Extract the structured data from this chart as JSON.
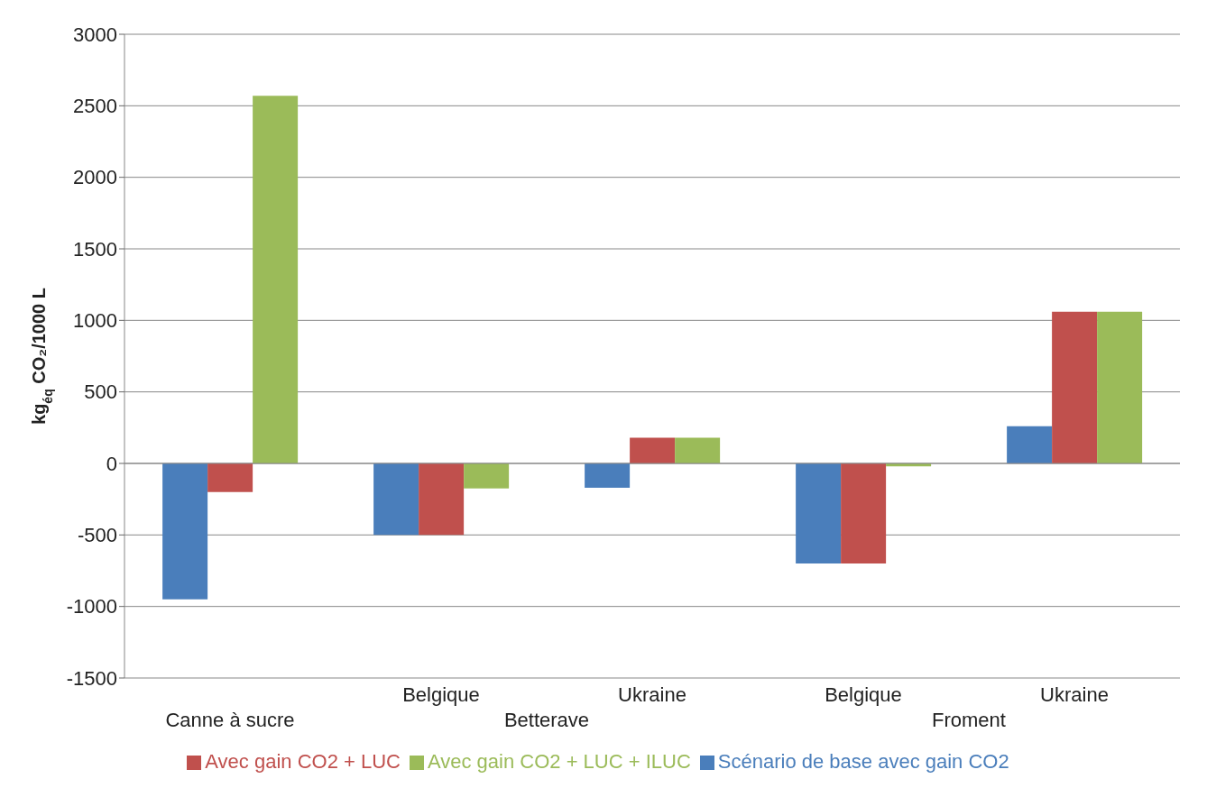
{
  "chart_data": {
    "type": "bar",
    "ylabel": "kg$_{éq}$ CO₂/1000 L",
    "categories": [
      "Canne à sucre",
      "Belgique",
      "Ukraine",
      "Belgique",
      "Ukraine"
    ],
    "annotations": [
      "Betterave",
      "Froment"
    ],
    "series": [
      {
        "name": "Scénario de base avec gain CO2",
        "color": "#4a7ebb",
        "values": [
          -950,
          -500,
          -170,
          -700,
          260
        ]
      },
      {
        "name": "Avec gain CO2 + LUC",
        "color": "#c0504d",
        "values": [
          -200,
          -500,
          180,
          -700,
          1060
        ]
      },
      {
        "name": "Avec gain CO2 + LUC + ILUC",
        "color": "#9bbb59",
        "values": [
          2570,
          -175,
          180,
          -20,
          1060
        ]
      }
    ],
    "ylim": [
      -1500,
      3000
    ],
    "yticks": [
      -1500,
      -1000,
      -500,
      0,
      500,
      1000,
      1500,
      2000,
      2500,
      3000
    ],
    "grid": "y",
    "legend": "bottom"
  }
}
